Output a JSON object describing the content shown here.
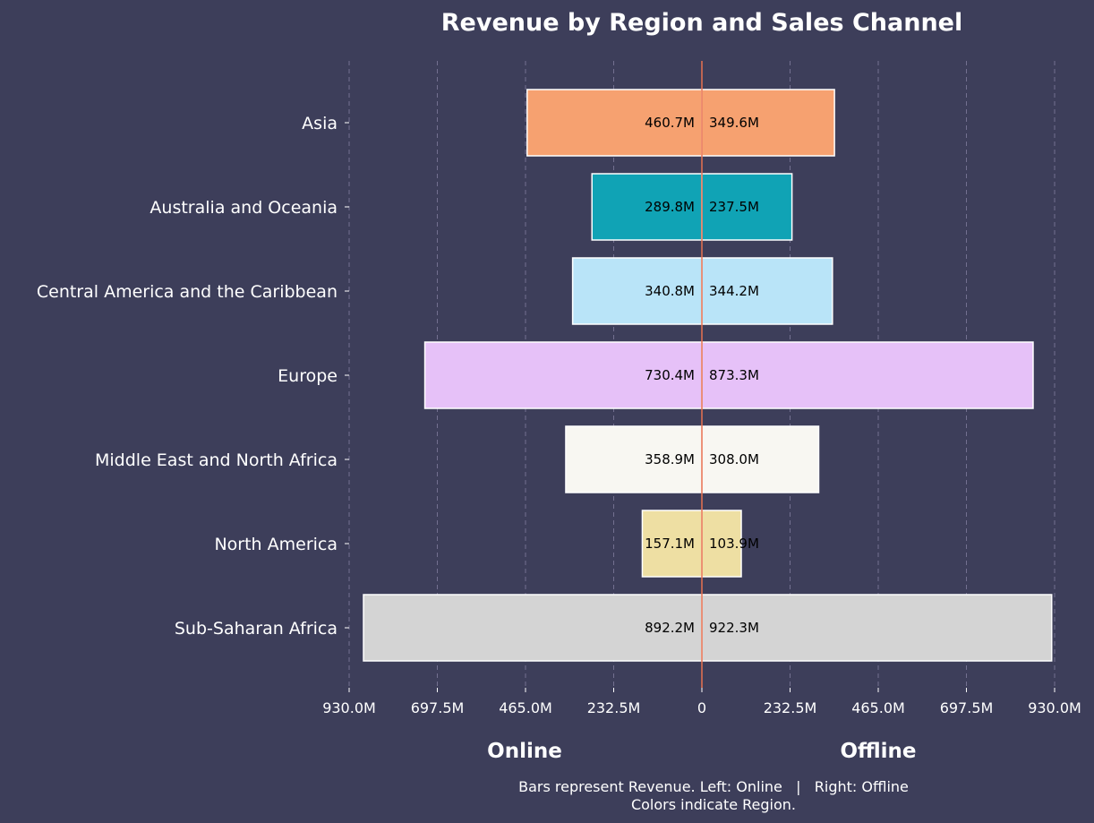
{
  "chart_data": {
    "type": "bar",
    "orientation": "horizontal-diverging",
    "title": "Revenue by Region and Sales Channel",
    "categories": [
      "Asia",
      "Australia and Oceania",
      "Central America and the Caribbean",
      "Europe",
      "Middle East and North Africa",
      "North America",
      "Sub-Saharan Africa"
    ],
    "series": [
      {
        "name": "Online",
        "side": "left",
        "values": [
          460.7,
          289.8,
          340.8,
          730.4,
          358.9,
          157.1,
          892.2
        ],
        "labels": [
          "460.7M",
          "289.8M",
          "340.8M",
          "730.4M",
          "358.9M",
          "157.1M",
          "892.2M"
        ]
      },
      {
        "name": "Offline",
        "side": "right",
        "values": [
          349.6,
          237.5,
          344.2,
          873.3,
          308.0,
          103.9,
          922.3
        ],
        "labels": [
          "349.6M",
          "237.5M",
          "344.2M",
          "873.3M",
          "308.0M",
          "103.9M",
          "922.3M"
        ]
      }
    ],
    "colors": [
      "#f6a170",
      "#10a3b5",
      "#b9e4f8",
      "#e6c1f8",
      "#f8f7f2",
      "#eedfa3",
      "#d4d4d4"
    ],
    "xlim": [
      -930,
      930
    ],
    "xticks": [
      -930,
      -697.5,
      -465,
      -232.5,
      0,
      232.5,
      465,
      697.5,
      930
    ],
    "xtick_labels": [
      "930.0M",
      "697.5M",
      "465.0M",
      "232.5M",
      "0",
      "232.5M",
      "465.0M",
      "697.5M",
      "930.0M"
    ],
    "unit": "M",
    "grid": "vertical dashed",
    "side_labels": {
      "left": "Online",
      "right": "Offline"
    },
    "caption": [
      "Bars represent Revenue. Left: Online   |   Right: Offline",
      "Colors indicate Region."
    ],
    "background": "#3d3e5a",
    "center_line_color": "#e8704f"
  }
}
